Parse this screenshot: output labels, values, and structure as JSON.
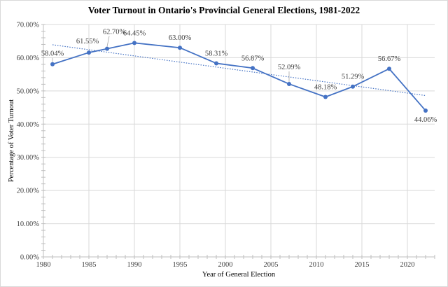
{
  "chart_data": {
    "type": "line",
    "title": "Voter Turnout in Ontario's Provincial General Elections, 1981-2022",
    "xlabel": "Year of General Election",
    "ylabel": "Percentage of Voter Turnout",
    "xlim": [
      1980,
      2023
    ],
    "ylim": [
      0,
      70
    ],
    "x_ticks": [
      1980,
      1985,
      1990,
      1995,
      2000,
      2005,
      2010,
      2015,
      2020
    ],
    "x_tick_labels": [
      "1980",
      "1985",
      "1990",
      "1995",
      "2000",
      "2005",
      "2010",
      "2015",
      "2020"
    ],
    "y_ticks": [
      0,
      10,
      20,
      30,
      40,
      50,
      60,
      70
    ],
    "y_tick_labels": [
      "0.00%",
      "10.00%",
      "20.00%",
      "30.00%",
      "40.00%",
      "50.00%",
      "60.00%",
      "70.00%"
    ],
    "grid": true,
    "legend": "none",
    "series": [
      {
        "name": "Voter Turnout",
        "color": "#4472c4",
        "x": [
          1981,
          1985,
          1987,
          1990,
          1995,
          1999,
          2003,
          2007,
          2011,
          2014,
          2018,
          2022
        ],
        "values": [
          58.04,
          61.55,
          62.7,
          64.45,
          63.0,
          58.31,
          56.87,
          52.09,
          48.18,
          51.29,
          56.67,
          44.06
        ],
        "labels": [
          "58.04%",
          "61.55%",
          "62.70%",
          "64.45%",
          "63.00%",
          "58.31%",
          "56.87%",
          "52.09%",
          "48.18%",
          "51.29%",
          "56.67%",
          "44.06%"
        ]
      }
    ],
    "trendline": {
      "type": "linear",
      "style": "dotted",
      "color": "#4472c4",
      "x": [
        1981,
        2022
      ],
      "values": [
        63.9,
        48.6
      ]
    }
  }
}
